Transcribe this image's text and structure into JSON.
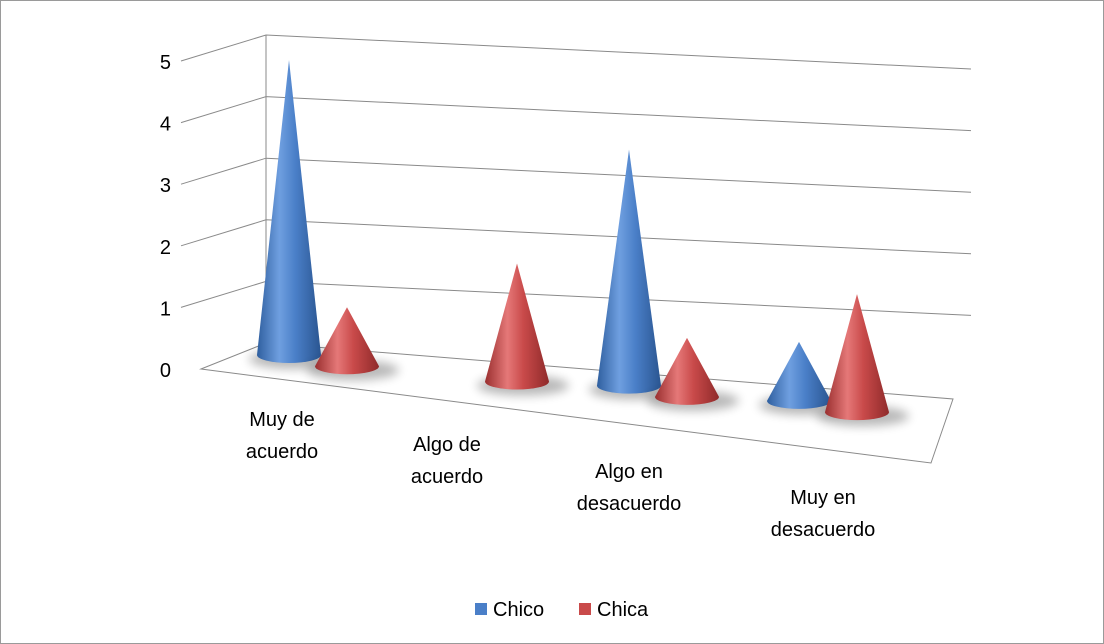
{
  "chart_data": {
    "type": "bar",
    "style": "3d-cone",
    "categories": [
      [
        "Muy de",
        "acuerdo"
      ],
      [
        "Algo de",
        "acuerdo"
      ],
      [
        "Algo en",
        "desacuerdo"
      ],
      [
        "Muy en",
        "desacuerdo"
      ]
    ],
    "series": [
      {
        "name": "Chico",
        "color": "#4a7fc8",
        "values": [
          5,
          0,
          4,
          1
        ]
      },
      {
        "name": "Chica",
        "color": "#c94a4a",
        "values": [
          1,
          2,
          1,
          2
        ]
      }
    ],
    "ylim": [
      0,
      5
    ],
    "yticks": [
      0,
      1,
      2,
      3,
      4,
      5
    ],
    "grid": true,
    "legend": "bottom"
  }
}
